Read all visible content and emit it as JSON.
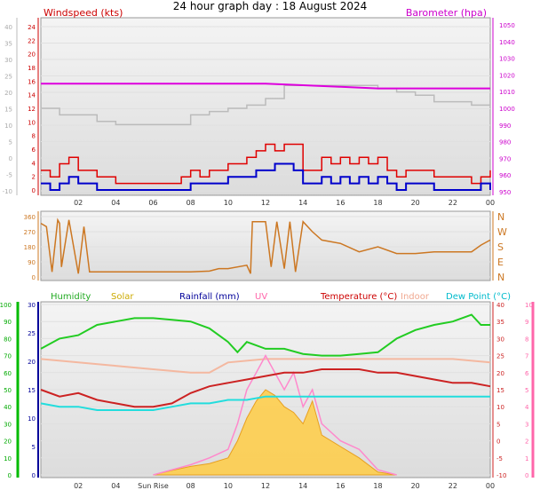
{
  "title": "24 hour graph day : 18 August 2024",
  "colors": {
    "wind": "#e00000",
    "gust": "#e00000",
    "avg": "#0000cc",
    "baro": "#dd00dd",
    "temp_axis": "#bbbbbb",
    "dir": "#cc7722",
    "humidity": "#22cc22",
    "solar": "#ffcc44",
    "rain": "#000099",
    "uv": "#ff88cc",
    "temperature": "#cc2222",
    "indoor": "#f4b8a0",
    "dewpoint": "#22dddd",
    "green_axis": "#00bb00",
    "pink_axis": "#ff66aa"
  },
  "chart_data": [
    {
      "type": "line",
      "id": "wind-baro",
      "legend_left": "Windspeed (kts)",
      "legend_right": "Barometer (hpa)",
      "x_ticks": [
        "02",
        "04",
        "06",
        "08",
        "10",
        "12",
        "14",
        "16",
        "18",
        "20",
        "22",
        "00"
      ],
      "y_left_temp": [
        40,
        35,
        30,
        25,
        20,
        15,
        10,
        5,
        0,
        -5,
        -10
      ],
      "y_left_wind": [
        24,
        22,
        20,
        18,
        16,
        14,
        12,
        10,
        8,
        6,
        4,
        2,
        0
      ],
      "y_right": [
        1050,
        1040,
        1030,
        1020,
        1010,
        1000,
        990,
        980,
        970,
        960,
        950
      ],
      "ranges": {
        "temp": [
          -10,
          40
        ],
        "wind": [
          0,
          25
        ],
        "baro": [
          945,
          1050
        ]
      },
      "series": [
        {
          "key": "temperature",
          "x": [
            0,
            1,
            2,
            3,
            4,
            5,
            6,
            7,
            8,
            9,
            10,
            11,
            12,
            13,
            14,
            15,
            16,
            17,
            18,
            19,
            20,
            21,
            22,
            23,
            24
          ],
          "y": [
            15,
            13,
            13,
            11,
            10,
            10,
            10,
            10,
            13,
            14,
            15,
            16,
            18,
            22,
            22,
            22,
            22,
            22,
            21,
            20,
            19,
            17,
            17,
            16,
            16
          ]
        },
        {
          "key": "baro",
          "x": [
            0,
            2,
            4,
            6,
            8,
            10,
            12,
            14,
            16,
            18,
            20,
            22,
            24
          ],
          "y": [
            1013,
            1013,
            1013,
            1013,
            1013,
            1013,
            1013,
            1012,
            1011,
            1010,
            1010,
            1010,
            1010
          ]
        },
        {
          "key": "gust",
          "x": [
            0,
            0.5,
            1,
            1.5,
            2,
            3,
            4,
            5,
            6,
            7,
            7.5,
            8,
            8.5,
            9,
            9.5,
            10,
            10.5,
            11,
            11.5,
            12,
            12.5,
            13,
            13.5,
            14,
            14.5,
            15,
            15.5,
            16,
            16.5,
            17,
            17.5,
            18,
            18.5,
            19,
            19.5,
            20,
            21,
            22,
            23,
            23.5,
            24
          ],
          "y": [
            3,
            2,
            4,
            5,
            3,
            2,
            1,
            1,
            1,
            1,
            2,
            3,
            2,
            3,
            3,
            4,
            4,
            5,
            6,
            7,
            6,
            7,
            7,
            3,
            3,
            5,
            4,
            5,
            4,
            5,
            4,
            5,
            3,
            2,
            3,
            3,
            2,
            2,
            1,
            2,
            3
          ]
        },
        {
          "key": "avg",
          "x": [
            0,
            0.5,
            1,
            1.5,
            2,
            3,
            4,
            5,
            6,
            7,
            7.5,
            8,
            8.5,
            9,
            9.5,
            10,
            10.5,
            11,
            11.5,
            12,
            12.5,
            13,
            13.5,
            14,
            14.5,
            15,
            15.5,
            16,
            16.5,
            17,
            17.5,
            18,
            18.5,
            19,
            19.5,
            20,
            21,
            22,
            23,
            23.5,
            24
          ],
          "y": [
            1,
            0,
            1,
            2,
            1,
            0,
            0,
            0,
            0,
            0,
            0,
            1,
            1,
            1,
            1,
            2,
            2,
            2,
            3,
            3,
            4,
            4,
            3,
            1,
            1,
            2,
            1,
            2,
            1,
            2,
            1,
            2,
            1,
            0,
            1,
            1,
            0,
            0,
            0,
            1,
            0
          ]
        }
      ]
    },
    {
      "type": "line",
      "id": "direction",
      "y_left": [
        360,
        270,
        180,
        90,
        0
      ],
      "y_right": [
        "N",
        "W",
        "S",
        "E",
        "N"
      ],
      "ranges": {
        "dir": [
          0,
          360
        ]
      },
      "series": [
        {
          "key": "dir",
          "x": [
            0,
            0.3,
            0.6,
            0.9,
            1,
            1.1,
            1.5,
            2,
            2.3,
            2.6,
            3,
            4,
            5,
            6,
            7,
            8,
            9,
            9.5,
            10,
            11,
            11.2,
            11.3,
            12,
            12.3,
            12.6,
            13,
            13.3,
            13.6,
            14,
            14.5,
            15,
            16,
            17,
            18,
            19,
            20,
            21,
            22,
            23,
            23.5,
            24
          ],
          "y": [
            320,
            300,
            30,
            340,
            320,
            60,
            340,
            20,
            300,
            30,
            30,
            30,
            30,
            30,
            30,
            30,
            35,
            50,
            50,
            70,
            20,
            330,
            330,
            60,
            330,
            50,
            330,
            30,
            330,
            270,
            220,
            200,
            150,
            180,
            140,
            140,
            150,
            150,
            150,
            190,
            220
          ]
        }
      ]
    },
    {
      "type": "area",
      "id": "multi",
      "legend": [
        "Humidity",
        "Solar",
        "Rainfall (mm)",
        "UV",
        "Temperature (°C)",
        "Indoor",
        "Dew Point (°C)"
      ],
      "x_ticks": [
        "02",
        "04",
        "Sun Rise",
        "08",
        "10",
        "12",
        "14",
        "16",
        "18",
        "20",
        "22",
        "00"
      ],
      "y_left_outer": [
        100,
        90,
        80,
        70,
        60,
        50,
        40,
        30,
        20,
        10,
        0
      ],
      "y_left_inner": [
        30,
        25,
        20,
        15,
        10,
        5,
        0
      ],
      "y_right_inner": [
        40,
        35,
        30,
        25,
        20,
        15,
        10,
        5,
        0,
        -5,
        -10
      ],
      "y_right_outer": [
        10,
        9,
        8,
        7,
        6,
        5,
        4,
        3,
        2,
        1,
        0
      ],
      "ranges": {
        "humidity": [
          0,
          100
        ],
        "rain": [
          0,
          30
        ],
        "temp": [
          -10,
          40
        ],
        "uv": [
          0,
          10
        ]
      },
      "series": [
        {
          "key": "humidity",
          "x": [
            0,
            1,
            2,
            3,
            4,
            5,
            6,
            7,
            8,
            9,
            10,
            10.5,
            11,
            12,
            13,
            14,
            15,
            16,
            17,
            18,
            19,
            20,
            21,
            22,
            23,
            23.5,
            24
          ],
          "y": [
            74,
            80,
            82,
            88,
            90,
            92,
            92,
            91,
            90,
            86,
            78,
            72,
            78,
            74,
            74,
            71,
            70,
            70,
            71,
            72,
            80,
            85,
            88,
            90,
            94,
            88,
            88
          ]
        },
        {
          "key": "temperature",
          "x": [
            0,
            1,
            2,
            3,
            4,
            5,
            6,
            7,
            8,
            9,
            10,
            11,
            12,
            13,
            14,
            15,
            16,
            17,
            18,
            19,
            20,
            21,
            22,
            23,
            24
          ],
          "y": [
            15,
            13,
            14,
            12,
            11,
            10,
            10,
            11,
            14,
            16,
            17,
            18,
            19,
            20,
            20,
            21,
            21,
            21,
            20,
            20,
            19,
            18,
            17,
            17,
            16
          ]
        },
        {
          "key": "dewpoint",
          "x": [
            0,
            1,
            2,
            3,
            4,
            5,
            6,
            7,
            8,
            9,
            10,
            11,
            12,
            13,
            14,
            15,
            16,
            17,
            18,
            19,
            20,
            21,
            22,
            23,
            24
          ],
          "y": [
            11,
            10,
            10,
            9,
            9,
            9,
            9,
            10,
            11,
            11,
            12,
            12,
            13,
            13,
            13,
            13,
            13,
            13,
            13,
            13,
            13,
            13,
            13,
            13,
            13
          ]
        },
        {
          "key": "indoor",
          "x": [
            0,
            2,
            4,
            6,
            8,
            9,
            10,
            12,
            14,
            16,
            18,
            20,
            22,
            24
          ],
          "y": [
            24,
            23,
            22,
            21,
            20,
            20,
            23,
            24,
            24,
            24,
            24,
            24,
            24,
            23
          ]
        },
        {
          "key": "uv",
          "x": [
            6,
            7,
            8,
            9,
            10,
            10.5,
            11,
            11.5,
            12,
            12.5,
            13,
            13.5,
            14,
            14.5,
            15,
            16,
            17,
            18,
            19
          ],
          "y": [
            0,
            0.3,
            0.6,
            1,
            1.5,
            3,
            5,
            6,
            7,
            6,
            5,
            6,
            4,
            5,
            3,
            2,
            1.5,
            0.3,
            0
          ]
        },
        {
          "key": "solar",
          "x": [
            6,
            7,
            8,
            9,
            10,
            10.5,
            11,
            11.5,
            12,
            12.5,
            13,
            13.5,
            14,
            14.5,
            15,
            16,
            17,
            18,
            19
          ],
          "y": [
            0,
            0.8,
            1.5,
            2,
            3,
            6,
            10,
            13,
            15,
            14,
            12,
            11,
            9,
            13,
            7,
            5,
            3,
            0.5,
            0
          ]
        }
      ]
    }
  ]
}
